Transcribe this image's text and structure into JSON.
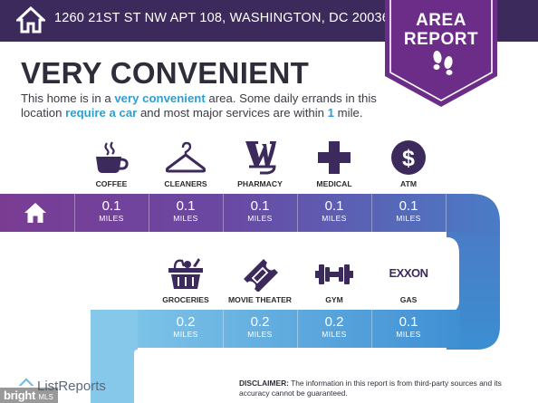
{
  "header": {
    "address": "1260 21ST ST NW APT 108, WASHINGTON, DC 20036",
    "badge_line1": "AREA",
    "badge_line2": "REPORT"
  },
  "main": {
    "title": "VERY CONVENIENT",
    "description_parts": {
      "p1": "This home is in a ",
      "h1": "very convenient",
      "p2": " area. Some daily errands in this location ",
      "h2": "require a car",
      "p3": " and most major services are within ",
      "h3": "1",
      "p4": " mile."
    }
  },
  "row1": [
    {
      "label": "COFFEE",
      "icon": "coffee-cup-icon",
      "value": "0.1",
      "unit": "MILES"
    },
    {
      "label": "CLEANERS",
      "icon": "hanger-icon",
      "value": "0.1",
      "unit": "MILES"
    },
    {
      "label": "PHARMACY",
      "icon": "walgreens-w-icon",
      "value": "0.1",
      "unit": "MILES"
    },
    {
      "label": "MEDICAL",
      "icon": "medical-cross-icon",
      "value": "0.1",
      "unit": "MILES"
    },
    {
      "label": "ATM",
      "icon": "dollar-icon",
      "value": "0.1",
      "unit": "MILES"
    }
  ],
  "row2": [
    {
      "label": "GROCERIES",
      "icon": "grocery-basket-icon",
      "value": "0.2",
      "unit": "MILES"
    },
    {
      "label": "MOVIE THEATER",
      "icon": "movie-ticket-icon",
      "value": "0.2",
      "unit": "MILES"
    },
    {
      "label": "GYM",
      "icon": "dumbbell-icon",
      "value": "0.2",
      "unit": "MILES"
    },
    {
      "label": "GAS",
      "icon": "exxon-logo",
      "value": "0.1",
      "unit": "MILES"
    }
  ],
  "gas_logo_text": "EXXON",
  "footer": {
    "logo_text": "ListReports",
    "watermark_main": "bright",
    "watermark_sub": "MLS",
    "disclaimer_bold": "DISCLAIMER:",
    "disclaimer_text": " The information in this report is from third-party sources and its accuracy cannot be guaranteed."
  },
  "colors": {
    "header_bg": "#3d2a5c",
    "badge": "#6b2d87",
    "highlight": "#2f9fd0",
    "band_start": "#7a3c93",
    "band_end": "#3c8fd0"
  }
}
